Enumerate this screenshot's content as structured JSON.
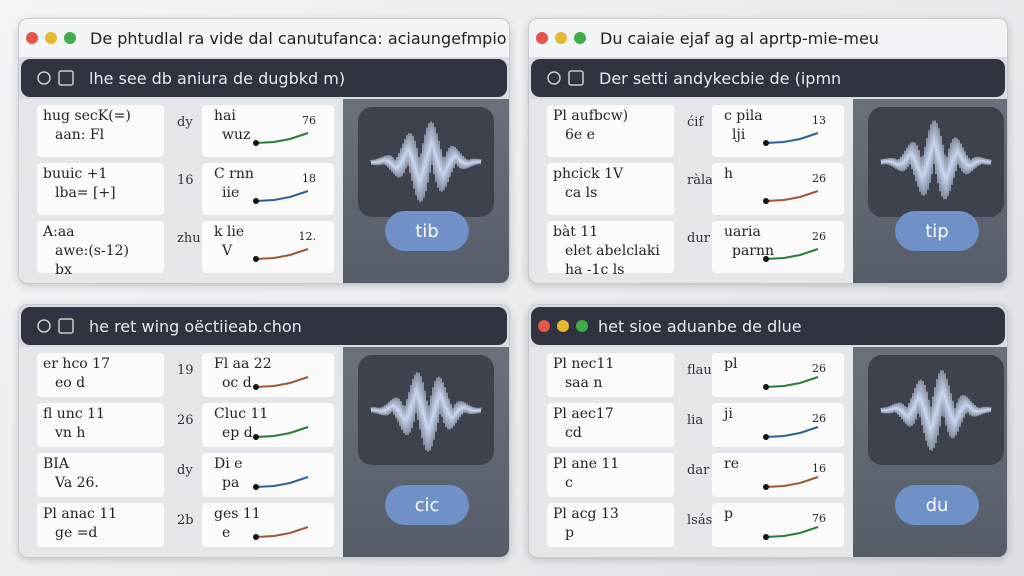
{
  "panels": [
    {
      "title": "De phtudlal ra vide dal canutufanca: aciaungefmpio",
      "toolbar": "lhe see db aniura de dugbkd m)",
      "button": "tib",
      "rows": [
        {
          "left": [
            "hug secK(=)",
            "aan: Fl"
          ],
          "mid": "dy",
          "right": {
            "lines": [
              "hai",
              "wuz"
            ],
            "num": "76"
          }
        },
        {
          "left": [
            "buuic +1",
            "lba= [+]"
          ],
          "mid": "16",
          "right": {
            "lines": [
              "C rnn",
              "iie"
            ],
            "num": "18"
          }
        },
        {
          "left": [
            "A:aa",
            "awe:(s-12)",
            "bx"
          ],
          "mid": "zhu",
          "right": {
            "lines": [
              "k lie",
              "V"
            ],
            "num": "12."
          }
        }
      ]
    },
    {
      "title": "Du caiaie ejaf ag al aprtp-mie-meu",
      "toolbar": "Der setti andykecbie de (ipmn",
      "button": "tip",
      "rows": [
        {
          "left": [
            "Pl aufbcw)",
            "6e e"
          ],
          "mid": "ćif",
          "right": {
            "lines": [
              "c pila",
              "lji"
            ],
            "num": "13"
          }
        },
        {
          "left": [
            "phcick 1V",
            "ca ls"
          ],
          "mid": "ràla",
          "right": {
            "lines": [
              "h"
            ],
            "num": "26"
          }
        },
        {
          "left": [
            "bàt 11",
            "elet abelclaki",
            "ha -1c ls"
          ],
          "mid": "dur",
          "right": {
            "lines": [
              "uaria",
              "parnn"
            ],
            "num": "26"
          }
        }
      ]
    },
    {
      "toolbar": "he ret wing oëctiieab.chon",
      "button": "cic",
      "rows": [
        {
          "left": [
            "er hco 17",
            "eo d"
          ],
          "mid": "19",
          "right": {
            "lines": [
              "Fl aa 22",
              "oc d"
            ]
          }
        },
        {
          "left": [
            "fl unc 11",
            "vn h"
          ],
          "mid": "26",
          "right": {
            "lines": [
              "Cluc 11",
              "ep d"
            ]
          }
        },
        {
          "left": [
            "BIA",
            "Va 26."
          ],
          "mid": "dy",
          "right": {
            "lines": [
              "Di e",
              "pa"
            ]
          }
        },
        {
          "left": [
            "Pl anac 11",
            "ge =d"
          ],
          "mid": "2b",
          "right": {
            "lines": [
              "ges 11",
              "e"
            ]
          }
        }
      ]
    },
    {
      "toolbar": "het sioe aduanbe de dlue",
      "button": "du",
      "rows": [
        {
          "left": [
            "Pl nec11",
            "saa n"
          ],
          "mid": "flau",
          "right": {
            "lines": [
              "pl"
            ],
            "num": "26"
          }
        },
        {
          "left": [
            "Pl aec17",
            "cd"
          ],
          "mid": "lia",
          "right": {
            "lines": [
              "ji"
            ],
            "num": "26"
          }
        },
        {
          "left": [
            "Pl ane 11",
            "c"
          ],
          "mid": "dar",
          "right": {
            "lines": [
              "re"
            ],
            "num": "16"
          }
        },
        {
          "left": [
            "Pl acg 13",
            "p"
          ],
          "mid": "lsás",
          "right": {
            "lines": [
              "p"
            ],
            "num": "76"
          }
        }
      ]
    }
  ]
}
